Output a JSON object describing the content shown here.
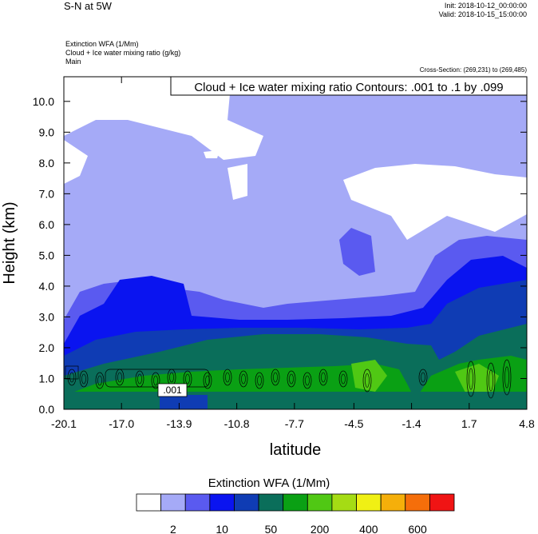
{
  "header": {
    "title": "S-N at 5W",
    "init": "Init: 2018-10-12_00:00:00",
    "valid": "Valid: 2018-10-15_15:00:00",
    "fields": [
      "Extinction WFA   (1/Mm)",
      "Cloud + Ice water mixing ratio   (g/kg)",
      "Main"
    ],
    "cross_section": "Cross-Section: (269,231) to (269,485)"
  },
  "chart_data": {
    "type": "heatmap",
    "title": "",
    "annotation": "Cloud + Ice water mixing ratio Contours: .001 to .1 by .099",
    "xlabel": "latitude",
    "ylabel": "Height (km)",
    "xlim": [
      -20.1,
      4.8
    ],
    "ylim": [
      0.0,
      10.8
    ],
    "x_ticks": [
      "-20.1",
      "-17.0",
      "-13.9",
      "-10.8",
      "-7.7",
      "-4.5",
      "-1.4",
      "1.7",
      "4.8"
    ],
    "y_ticks": [
      "0.0",
      "1.0",
      "2.0",
      "3.0",
      "4.0",
      "5.0",
      "6.0",
      "7.0",
      "8.0",
      "9.0",
      "10.0"
    ],
    "contour_label": ".001",
    "colorbar": {
      "title": "Extinction WFA  (1/Mm)",
      "colors": [
        "#ffffff",
        "#a5aaf7",
        "#5a5af0",
        "#0a14f0",
        "#0f3cb4",
        "#0a6e5a",
        "#0aa014",
        "#50c814",
        "#a5dc14",
        "#f0f014",
        "#f5af0a",
        "#f56e0a",
        "#f01414"
      ],
      "labels": [
        "2",
        "10",
        "50",
        "200",
        "400",
        "600"
      ]
    }
  }
}
